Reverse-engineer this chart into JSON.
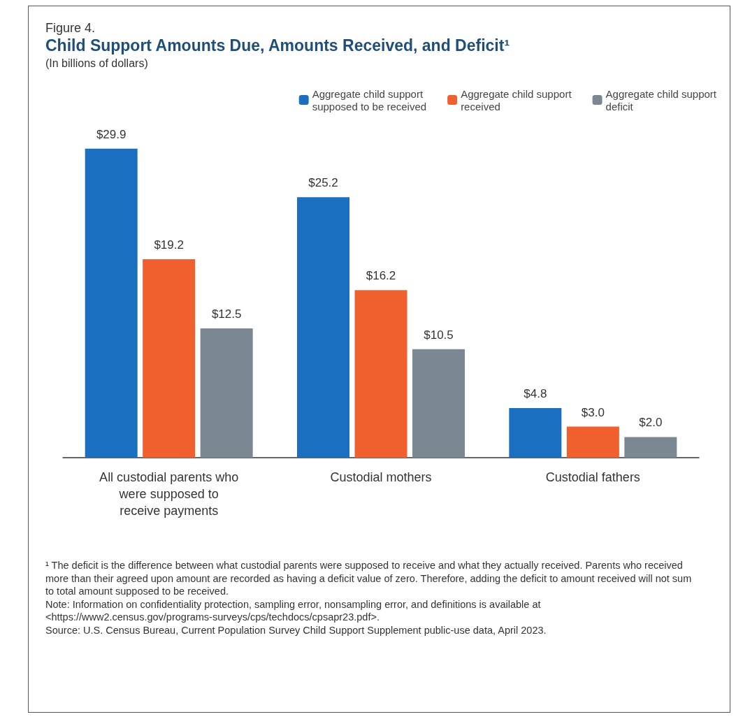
{
  "chart_data": {
    "type": "bar",
    "title": "Child Support Amounts Due, Amounts Received, and Deficit¹",
    "subtitle": "(In billions of dollars)",
    "categories": [
      "All custodial parents who were supposed to receive payments",
      "Custodial mothers",
      "Custodial fathers"
    ],
    "series": [
      {
        "name": "Aggregate child support supposed to be received",
        "color": "#1a6fc0",
        "values": [
          29.9,
          25.2,
          4.8
        ],
        "value_labels": [
          "$29.9",
          "$25.2",
          "$4.8"
        ]
      },
      {
        "name": "Aggregate child support received",
        "color": "#f0602f",
        "values": [
          19.2,
          16.2,
          3.0
        ],
        "value_labels": [
          "$19.2",
          "$16.2",
          "$3.0"
        ]
      },
      {
        "name": "Aggregate child support deficit",
        "color": "#7b8793",
        "values": [
          12.5,
          10.5,
          2.0
        ],
        "value_labels": [
          "$12.5",
          "$10.5",
          "$2.0"
        ]
      }
    ],
    "legend": "top right",
    "annotations": [
      "Figure 4.",
      "¹ The deficit is the difference between what custodial parents were supposed to receive and what they actually received. Parents who received more than their agreed upon amount are recorded as having a deficit value of zero. Therefore, adding the deficit to amount received will not sum to total amount supposed to be received.",
      "Note: Information on confidentiality protection, sampling error, nonsampling error, and definitions is available at <https://www2.census.gov/programs-surveys/cps/techdocs/cpsapr23.pdf>.",
      "Source: U.S. Census Bureau, Current Population Survey Child Support Supplement public-use data, April 2023."
    ]
  }
}
